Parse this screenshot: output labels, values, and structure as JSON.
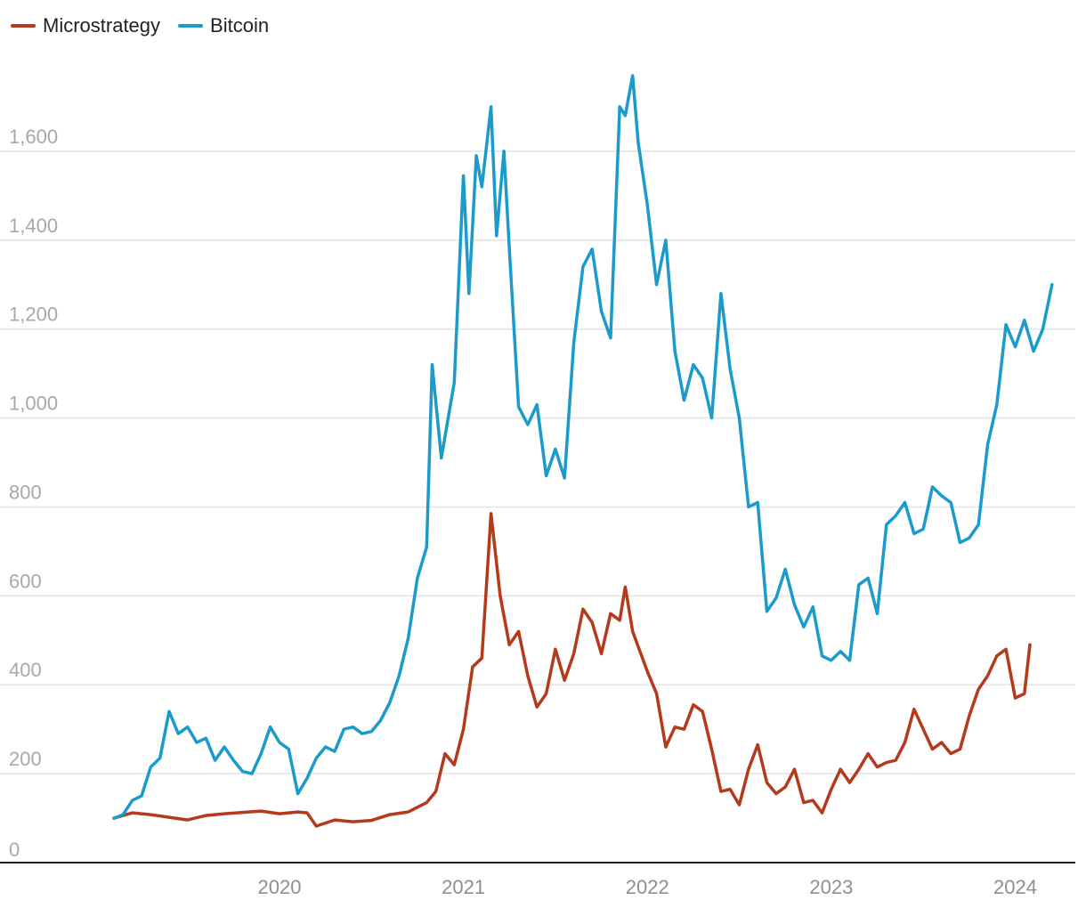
{
  "chart_data": {
    "type": "line",
    "title": "",
    "xlabel": "",
    "ylabel": "",
    "ylim": [
      0,
      1800
    ],
    "yticks": [
      0,
      200,
      400,
      600,
      800,
      1000,
      1200,
      1400,
      1600
    ],
    "ytick_labels": [
      "0",
      "200",
      "400",
      "600",
      "800",
      "1,000",
      "1,200",
      "1,400",
      "1,600"
    ],
    "xlim": [
      2019.1,
      2024.23
    ],
    "xticks": [
      2020,
      2021,
      2022,
      2023,
      2024
    ],
    "xtick_labels": [
      "2020",
      "2021",
      "2022",
      "2023",
      "2024"
    ],
    "grid": "horizontal",
    "legend_position": "top-left",
    "series": [
      {
        "name": "Microstrategy",
        "color": "#b5391b",
        "points": [
          [
            2019.1,
            100
          ],
          [
            2019.2,
            112
          ],
          [
            2019.3,
            108
          ],
          [
            2019.4,
            102
          ],
          [
            2019.5,
            96
          ],
          [
            2019.6,
            106
          ],
          [
            2019.7,
            110
          ],
          [
            2019.8,
            113
          ],
          [
            2019.9,
            116
          ],
          [
            2020.0,
            110
          ],
          [
            2020.1,
            114
          ],
          [
            2020.15,
            112
          ],
          [
            2020.2,
            82
          ],
          [
            2020.3,
            96
          ],
          [
            2020.4,
            92
          ],
          [
            2020.5,
            95
          ],
          [
            2020.6,
            108
          ],
          [
            2020.7,
            114
          ],
          [
            2020.8,
            135
          ],
          [
            2020.85,
            160
          ],
          [
            2020.9,
            245
          ],
          [
            2020.95,
            220
          ],
          [
            2021.0,
            300
          ],
          [
            2021.05,
            440
          ],
          [
            2021.1,
            460
          ],
          [
            2021.15,
            785
          ],
          [
            2021.2,
            600
          ],
          [
            2021.25,
            490
          ],
          [
            2021.3,
            520
          ],
          [
            2021.35,
            420
          ],
          [
            2021.4,
            350
          ],
          [
            2021.45,
            380
          ],
          [
            2021.5,
            480
          ],
          [
            2021.55,
            410
          ],
          [
            2021.6,
            470
          ],
          [
            2021.65,
            570
          ],
          [
            2021.7,
            540
          ],
          [
            2021.75,
            470
          ],
          [
            2021.8,
            560
          ],
          [
            2021.85,
            545
          ],
          [
            2021.88,
            620
          ],
          [
            2021.92,
            520
          ],
          [
            2022.0,
            430
          ],
          [
            2022.05,
            380
          ],
          [
            2022.1,
            260
          ],
          [
            2022.15,
            305
          ],
          [
            2022.2,
            300
          ],
          [
            2022.25,
            355
          ],
          [
            2022.3,
            340
          ],
          [
            2022.35,
            255
          ],
          [
            2022.4,
            160
          ],
          [
            2022.45,
            165
          ],
          [
            2022.5,
            130
          ],
          [
            2022.55,
            210
          ],
          [
            2022.6,
            265
          ],
          [
            2022.65,
            180
          ],
          [
            2022.7,
            155
          ],
          [
            2022.75,
            170
          ],
          [
            2022.8,
            210
          ],
          [
            2022.85,
            135
          ],
          [
            2022.9,
            140
          ],
          [
            2022.95,
            112
          ],
          [
            2023.0,
            165
          ],
          [
            2023.05,
            210
          ],
          [
            2023.1,
            180
          ],
          [
            2023.15,
            210
          ],
          [
            2023.2,
            245
          ],
          [
            2023.25,
            215
          ],
          [
            2023.3,
            225
          ],
          [
            2023.35,
            230
          ],
          [
            2023.4,
            270
          ],
          [
            2023.45,
            345
          ],
          [
            2023.5,
            300
          ],
          [
            2023.55,
            255
          ],
          [
            2023.6,
            270
          ],
          [
            2023.65,
            245
          ],
          [
            2023.7,
            255
          ],
          [
            2023.75,
            330
          ],
          [
            2023.8,
            390
          ],
          [
            2023.85,
            420
          ],
          [
            2023.9,
            465
          ],
          [
            2023.95,
            480
          ],
          [
            2024.0,
            370
          ],
          [
            2024.05,
            380
          ],
          [
            2024.08,
            490
          ]
        ]
      },
      {
        "name": "Bitcoin",
        "color": "#1a9bcb",
        "points": [
          [
            2019.1,
            100
          ],
          [
            2019.15,
            108
          ],
          [
            2019.2,
            140
          ],
          [
            2019.25,
            150
          ],
          [
            2019.3,
            215
          ],
          [
            2019.35,
            235
          ],
          [
            2019.4,
            340
          ],
          [
            2019.45,
            290
          ],
          [
            2019.5,
            305
          ],
          [
            2019.55,
            270
          ],
          [
            2019.6,
            280
          ],
          [
            2019.65,
            230
          ],
          [
            2019.7,
            260
          ],
          [
            2019.75,
            230
          ],
          [
            2019.8,
            205
          ],
          [
            2019.85,
            200
          ],
          [
            2019.9,
            245
          ],
          [
            2019.95,
            305
          ],
          [
            2020.0,
            270
          ],
          [
            2020.05,
            255
          ],
          [
            2020.1,
            155
          ],
          [
            2020.15,
            190
          ],
          [
            2020.2,
            235
          ],
          [
            2020.25,
            260
          ],
          [
            2020.3,
            250
          ],
          [
            2020.35,
            300
          ],
          [
            2020.4,
            305
          ],
          [
            2020.45,
            290
          ],
          [
            2020.5,
            295
          ],
          [
            2020.55,
            320
          ],
          [
            2020.6,
            360
          ],
          [
            2020.65,
            420
          ],
          [
            2020.7,
            505
          ],
          [
            2020.75,
            640
          ],
          [
            2020.8,
            710
          ],
          [
            2020.83,
            1120
          ],
          [
            2020.88,
            910
          ],
          [
            2020.95,
            1080
          ],
          [
            2021.0,
            1545
          ],
          [
            2021.03,
            1280
          ],
          [
            2021.07,
            1590
          ],
          [
            2021.1,
            1520
          ],
          [
            2021.15,
            1700
          ],
          [
            2021.18,
            1410
          ],
          [
            2021.22,
            1600
          ],
          [
            2021.25,
            1380
          ],
          [
            2021.3,
            1025
          ],
          [
            2021.35,
            985
          ],
          [
            2021.4,
            1030
          ],
          [
            2021.45,
            870
          ],
          [
            2021.5,
            930
          ],
          [
            2021.55,
            865
          ],
          [
            2021.6,
            1170
          ],
          [
            2021.65,
            1340
          ],
          [
            2021.7,
            1380
          ],
          [
            2021.75,
            1240
          ],
          [
            2021.8,
            1180
          ],
          [
            2021.85,
            1700
          ],
          [
            2021.88,
            1680
          ],
          [
            2021.92,
            1770
          ],
          [
            2021.95,
            1620
          ],
          [
            2022.0,
            1480
          ],
          [
            2022.05,
            1300
          ],
          [
            2022.1,
            1400
          ],
          [
            2022.15,
            1150
          ],
          [
            2022.2,
            1040
          ],
          [
            2022.25,
            1120
          ],
          [
            2022.3,
            1090
          ],
          [
            2022.35,
            1000
          ],
          [
            2022.4,
            1280
          ],
          [
            2022.45,
            1110
          ],
          [
            2022.5,
            1000
          ],
          [
            2022.55,
            800
          ],
          [
            2022.6,
            810
          ],
          [
            2022.65,
            565
          ],
          [
            2022.7,
            595
          ],
          [
            2022.75,
            660
          ],
          [
            2022.8,
            580
          ],
          [
            2022.85,
            530
          ],
          [
            2022.9,
            575
          ],
          [
            2022.95,
            465
          ],
          [
            2023.0,
            455
          ],
          [
            2023.05,
            475
          ],
          [
            2023.1,
            455
          ],
          [
            2023.15,
            625
          ],
          [
            2023.2,
            640
          ],
          [
            2023.25,
            560
          ],
          [
            2023.3,
            760
          ],
          [
            2023.35,
            780
          ],
          [
            2023.4,
            810
          ],
          [
            2023.45,
            740
          ],
          [
            2023.5,
            750
          ],
          [
            2023.55,
            845
          ],
          [
            2023.6,
            825
          ],
          [
            2023.65,
            810
          ],
          [
            2023.7,
            720
          ],
          [
            2023.75,
            730
          ],
          [
            2023.8,
            760
          ],
          [
            2023.85,
            940
          ],
          [
            2023.9,
            1030
          ],
          [
            2023.95,
            1210
          ],
          [
            2024.0,
            1160
          ],
          [
            2024.05,
            1220
          ],
          [
            2024.1,
            1150
          ],
          [
            2024.15,
            1200
          ],
          [
            2024.2,
            1300
          ]
        ]
      }
    ]
  }
}
